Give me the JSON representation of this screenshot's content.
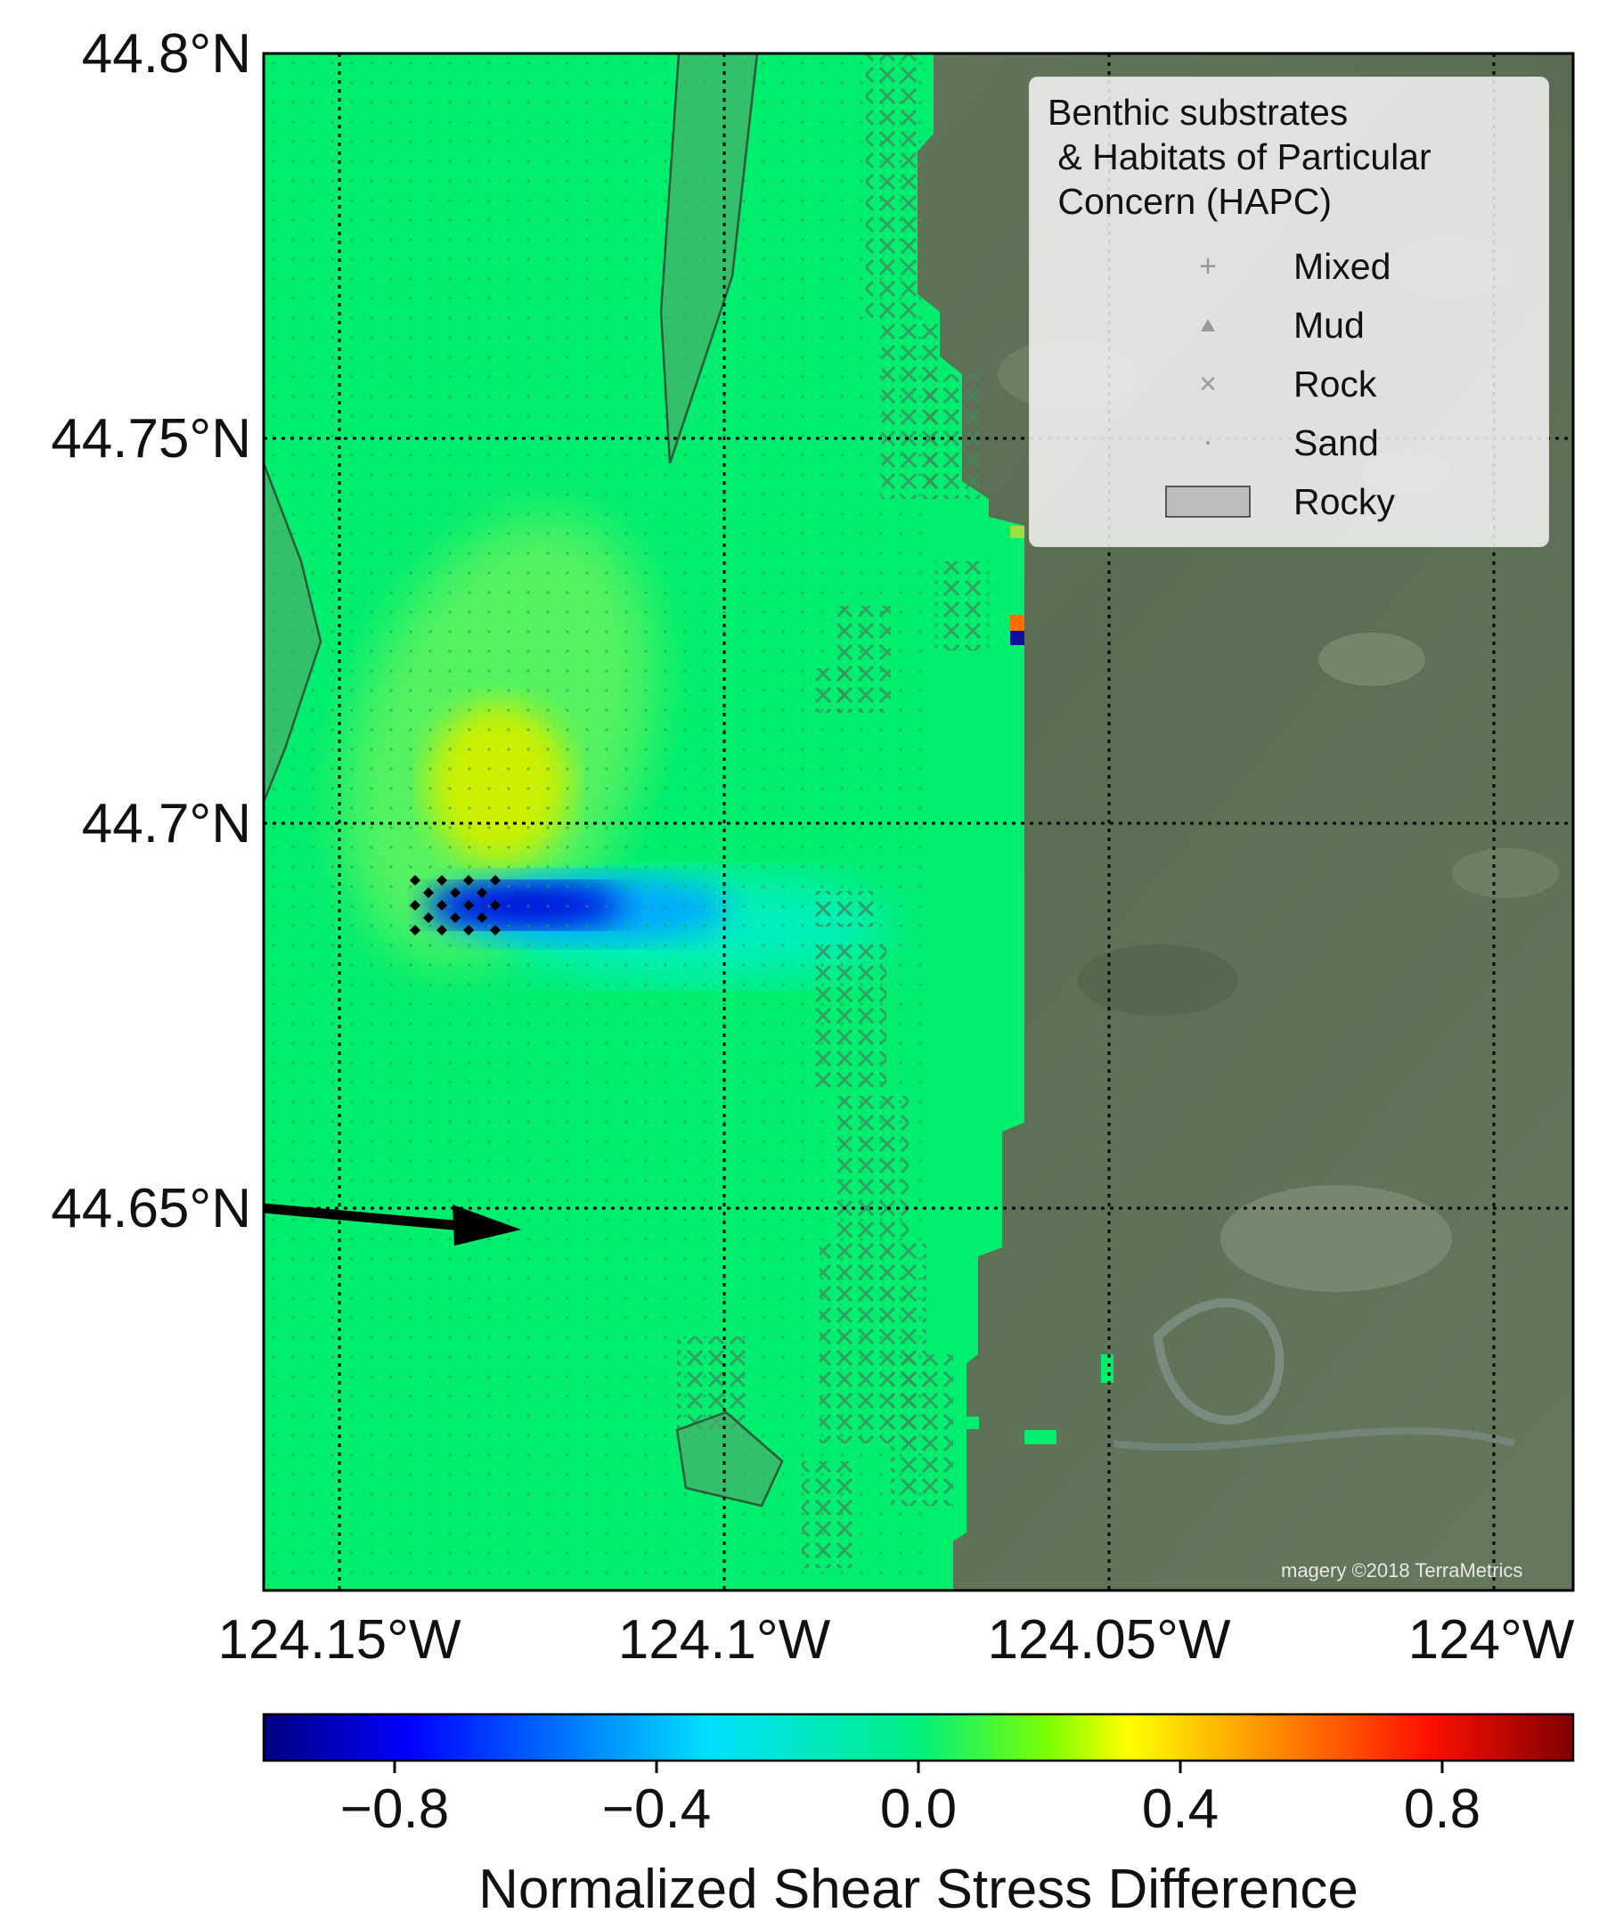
{
  "map": {
    "lat_ticks": [
      "44.8°N",
      "44.75°N",
      "44.7°N",
      "44.65°N"
    ],
    "lon_ticks": [
      "124.15°W",
      "124.1°W",
      "124.05°W",
      "124°W"
    ],
    "credit": "magery ©2018 TerraMetrics",
    "colors": {
      "ocean_baseline": "#00ee6e",
      "land_satellite": "#5e7155",
      "rocky_fill": "#4fa868",
      "rock_marker": "#3e8c5e",
      "grid_line": "#000000",
      "arrow": "#000000"
    }
  },
  "legend": {
    "title": "Benthic substrates\n & Habitats of Particular\n Concern (HAPC)",
    "entries": [
      {
        "label": "Mixed",
        "marker": "plus-icon"
      },
      {
        "label": "Mud",
        "marker": "triangle-icon"
      },
      {
        "label": "Rock",
        "marker": "cross-icon"
      },
      {
        "label": "Sand",
        "marker": "dot-icon"
      },
      {
        "label": "Rocky",
        "marker": "rectangle-swatch"
      }
    ]
  },
  "colorbar": {
    "title": "Normalized Shear Stress Difference",
    "ticks": [
      "−0.8",
      "−0.4",
      "0.0",
      "0.4",
      "0.8"
    ],
    "tick_values": [
      -0.8,
      -0.4,
      0.0,
      0.4,
      0.8
    ],
    "range": [
      -1,
      1
    ],
    "colormap": "jet"
  }
}
